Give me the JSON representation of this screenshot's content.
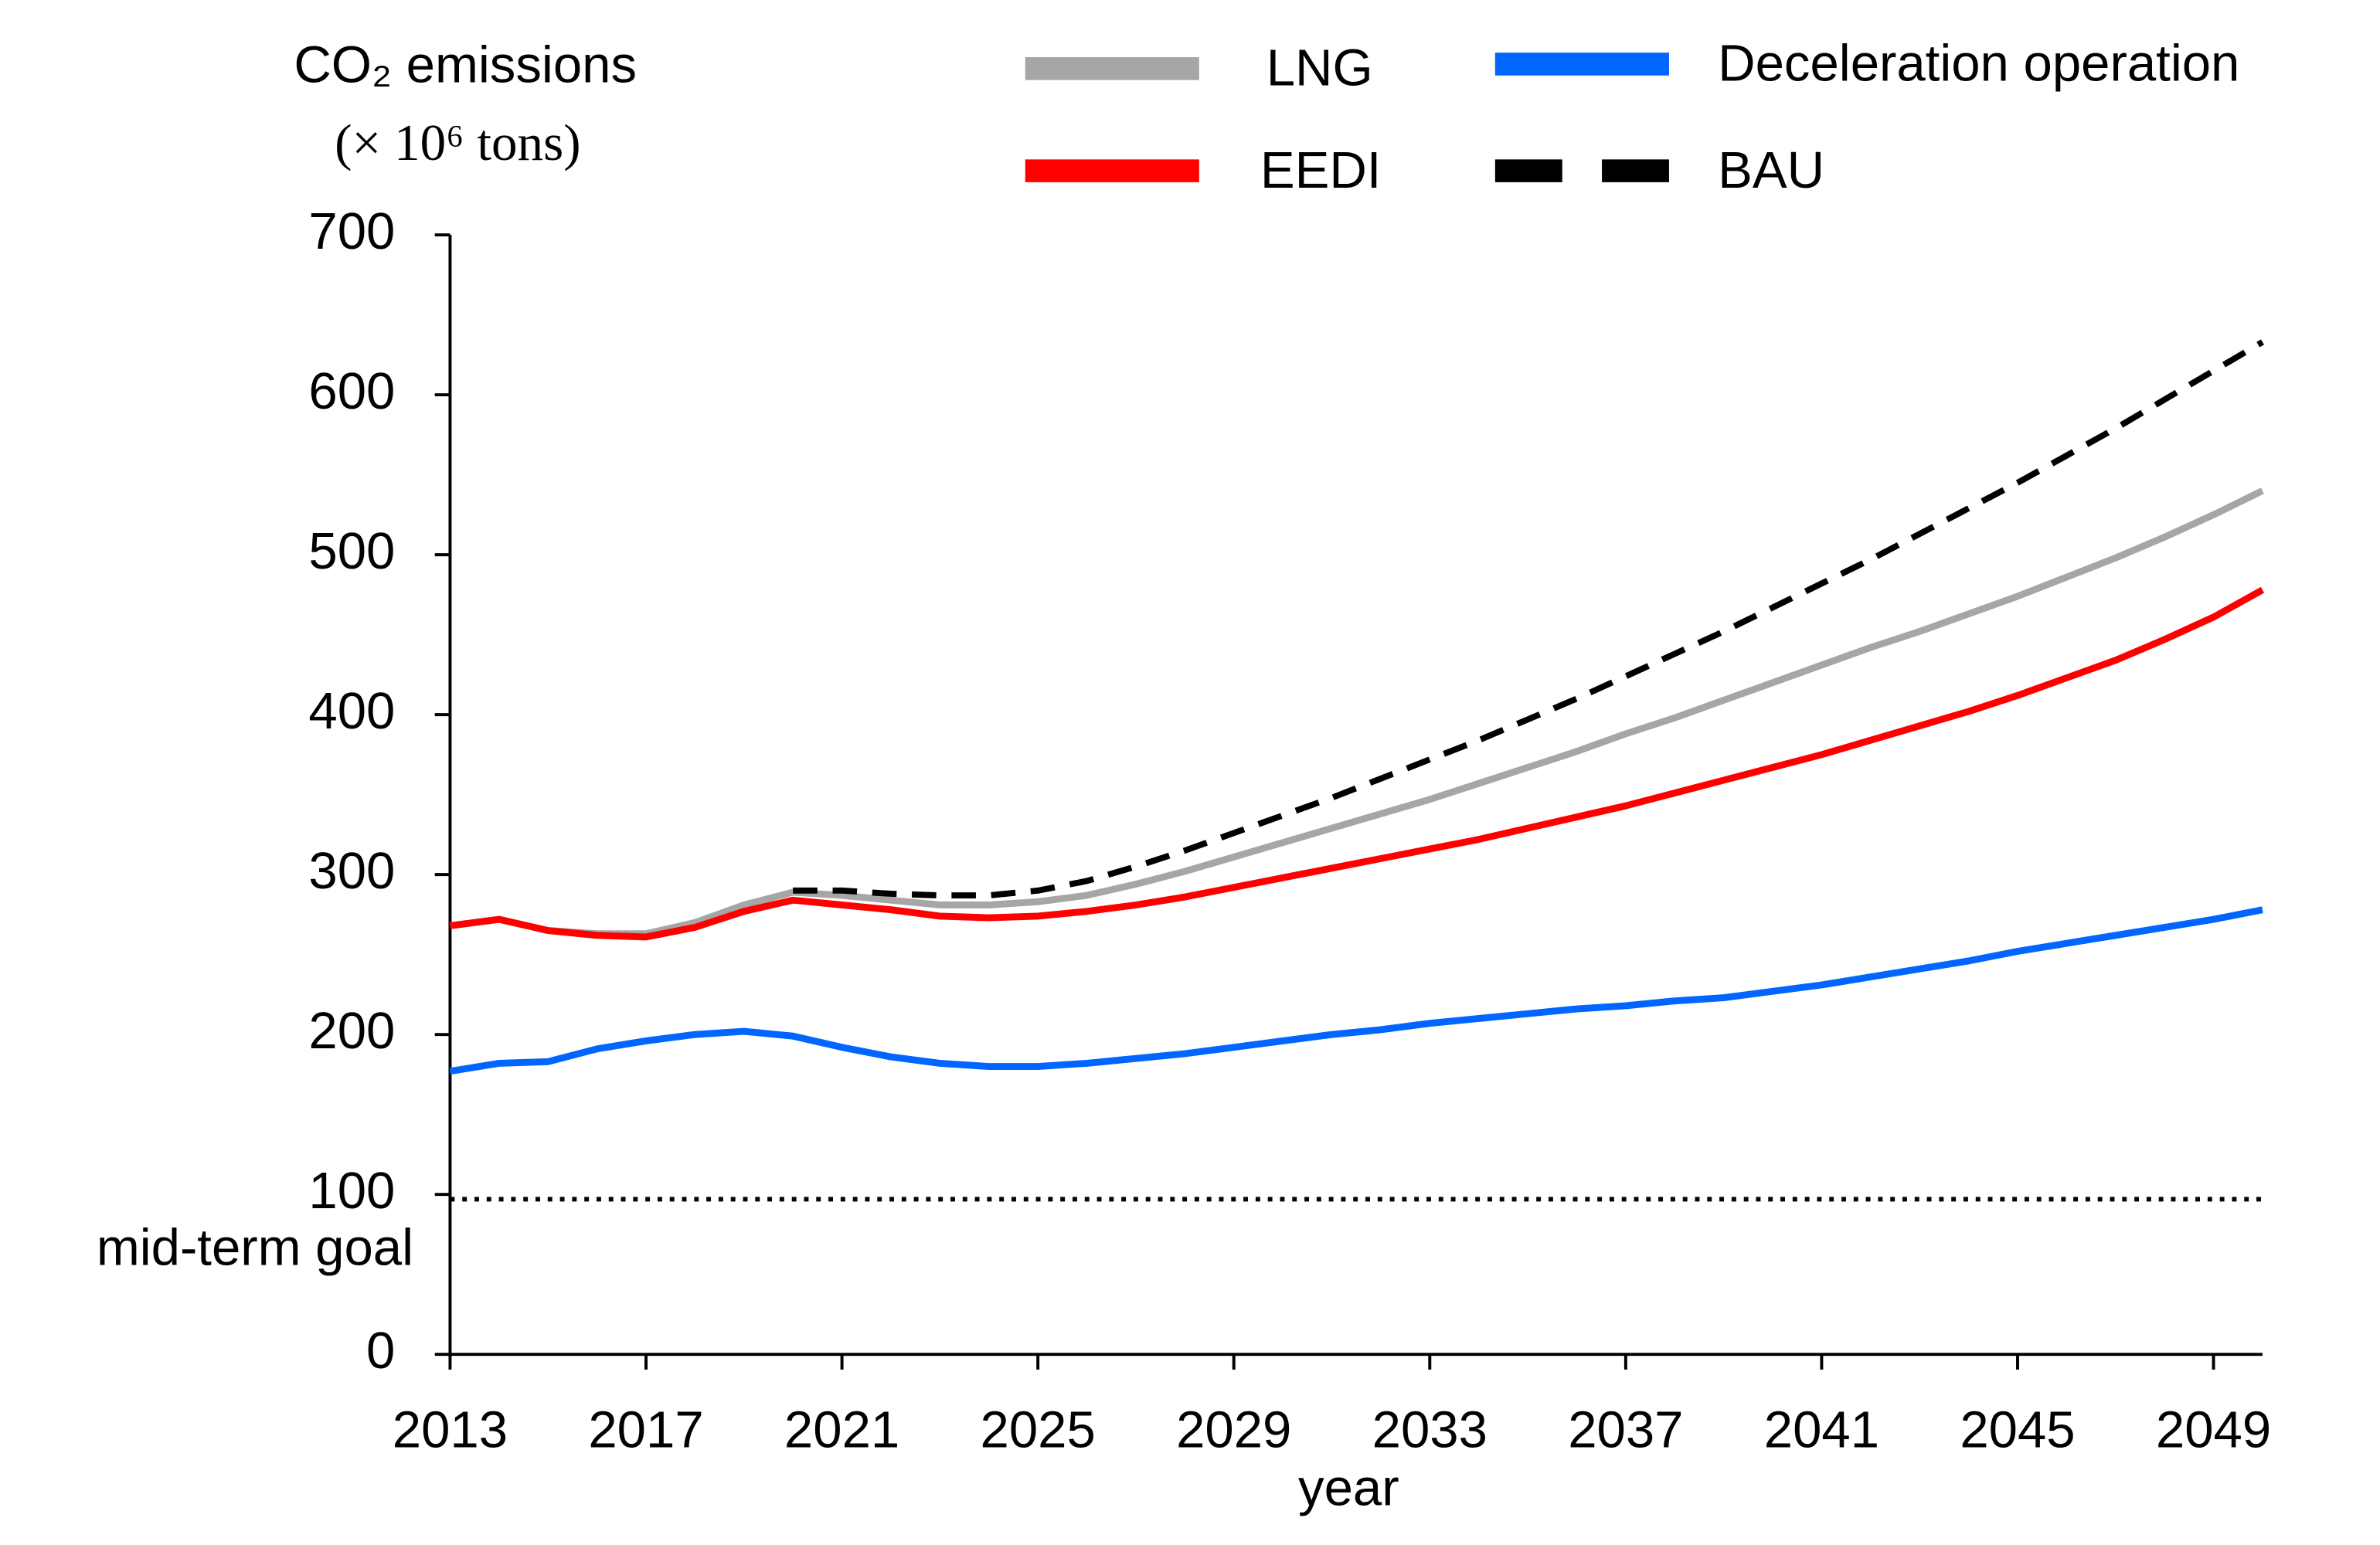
{
  "chart_data": {
    "type": "line",
    "y_label": [
      "CO₂ emissions",
      "(× 10⁶ tons)"
    ],
    "x_label": "year",
    "x": [
      2013,
      2014,
      2015,
      2016,
      2017,
      2018,
      2019,
      2020,
      2021,
      2022,
      2023,
      2024,
      2025,
      2026,
      2027,
      2028,
      2029,
      2030,
      2031,
      2032,
      2033,
      2034,
      2035,
      2036,
      2037,
      2038,
      2039,
      2040,
      2041,
      2042,
      2043,
      2044,
      2045,
      2046,
      2047,
      2048,
      2049,
      2050
    ],
    "series": [
      {
        "name": "LNG",
        "color": "#a6a6a6",
        "dash": false,
        "values": [
          268,
          272,
          265,
          263,
          263,
          270,
          281,
          289,
          287,
          284,
          281,
          281,
          283,
          287,
          294,
          302,
          311,
          320,
          329,
          338,
          347,
          357,
          367,
          377,
          388,
          398,
          409,
          420,
          431,
          442,
          452,
          463,
          474,
          486,
          498,
          511,
          525,
          540
        ]
      },
      {
        "name": "EEDI",
        "color": "#ff0000",
        "dash": false,
        "values": [
          268,
          272,
          265,
          262,
          261,
          267,
          277,
          284,
          281,
          278,
          274,
          273,
          274,
          277,
          281,
          286,
          292,
          298,
          304,
          310,
          316,
          322,
          329,
          336,
          343,
          351,
          359,
          367,
          375,
          384,
          393,
          402,
          412,
          423,
          434,
          447,
          461,
          478
        ]
      },
      {
        "name": "Deceleration operation",
        "color": "#0066ff",
        "dash": false,
        "values": [
          177,
          182,
          183,
          191,
          196,
          200,
          202,
          199,
          192,
          186,
          182,
          180,
          180,
          182,
          185,
          188,
          192,
          196,
          200,
          203,
          207,
          210,
          213,
          216,
          218,
          221,
          223,
          227,
          231,
          236,
          241,
          246,
          252,
          257,
          262,
          267,
          272,
          278
        ]
      },
      {
        "name": "BAU",
        "color": "#000000",
        "dash": true,
        "values": [
          null,
          null,
          null,
          null,
          null,
          null,
          null,
          290,
          290,
          288,
          287,
          287,
          290,
          296,
          305,
          315,
          326,
          337,
          348,
          360,
          372,
          384,
          397,
          410,
          424,
          438,
          452,
          467,
          482,
          497,
          513,
          529,
          545,
          562,
          579,
          597,
          615,
          633
        ]
      }
    ],
    "reference_lines": [
      {
        "value": 97,
        "label": "mid-term goal"
      }
    ],
    "xlim": [
      2013,
      2050
    ],
    "xticks": [
      2013,
      2017,
      2021,
      2025,
      2029,
      2033,
      2037,
      2041,
      2045,
      2049
    ],
    "ylim": [
      0,
      700
    ],
    "yticks": [
      0,
      100,
      200,
      300,
      400,
      500,
      600,
      700
    ],
    "grid": false
  }
}
